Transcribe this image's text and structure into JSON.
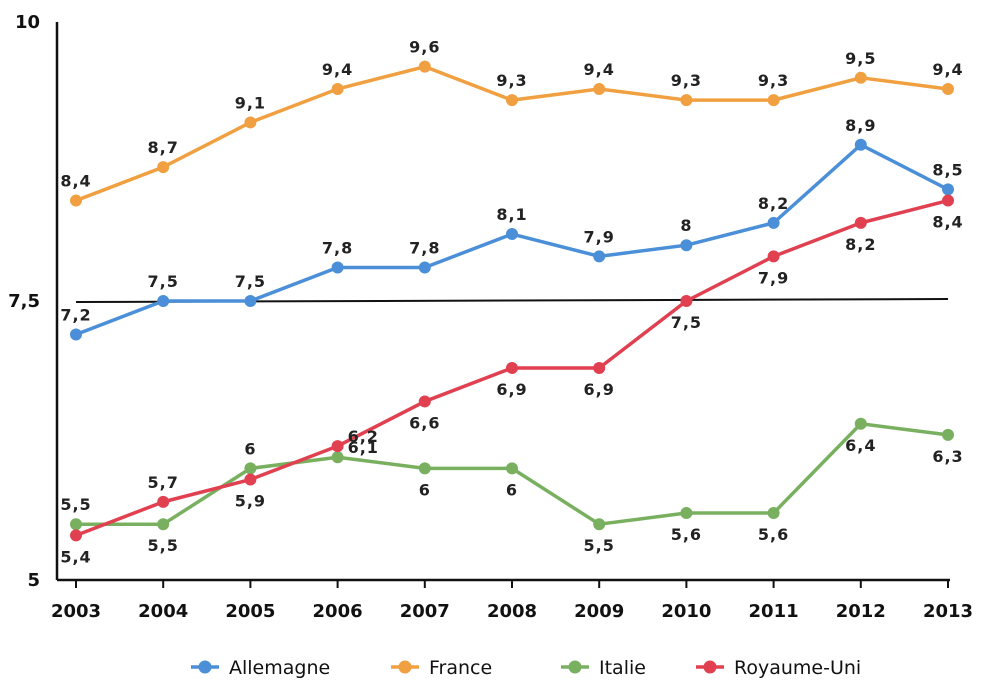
{
  "chart_data": {
    "type": "line",
    "title": "",
    "xlabel": "",
    "ylabel": "",
    "x": [
      "2003",
      "2004",
      "2005",
      "2006",
      "2007",
      "2008",
      "2009",
      "2010",
      "2011",
      "2012",
      "2013"
    ],
    "ylim": [
      5,
      10
    ],
    "yticks": [
      "5",
      "7,5",
      "10"
    ],
    "reference_line": 7.5,
    "grid": false,
    "legend_position": "bottom",
    "series": [
      {
        "name": "Allemagne",
        "color": "#4a8fd8",
        "values": [
          7.2,
          7.5,
          7.5,
          7.8,
          7.8,
          8.1,
          7.9,
          8.0,
          8.2,
          8.9,
          8.5
        ],
        "labels": [
          "7,2",
          "7,5",
          "7,5",
          "7,8",
          "7,8",
          "8,1",
          "7,9",
          "8",
          "8,2",
          "8,9",
          "8,5"
        ]
      },
      {
        "name": "France",
        "color": "#f0a040",
        "values": [
          8.4,
          8.7,
          9.1,
          9.4,
          9.6,
          9.3,
          9.4,
          9.3,
          9.3,
          9.5,
          9.4
        ],
        "labels": [
          "8,4",
          "8,7",
          "9,1",
          "9,4",
          "9,6",
          "9,3",
          "9,4",
          "9,3",
          "9,3",
          "9,5",
          "9,4"
        ]
      },
      {
        "name": "Italie",
        "color": "#78b060",
        "values": [
          5.5,
          5.5,
          6.0,
          6.1,
          6.0,
          6.0,
          5.5,
          5.6,
          5.6,
          6.4,
          6.3
        ],
        "labels": [
          "5,5",
          "5,5",
          "6",
          "6,1",
          "6",
          "6",
          "5,5",
          "5,6",
          "5,6",
          "6,4",
          "6,3"
        ]
      },
      {
        "name": "Royaume-Uni",
        "color": "#e04050",
        "values": [
          5.4,
          5.7,
          5.9,
          6.2,
          6.6,
          6.9,
          6.9,
          7.5,
          7.9,
          8.2,
          8.4
        ],
        "labels": [
          "5,4",
          "5,7",
          "5,9",
          "6,2",
          "6,6",
          "6,9",
          "6,9",
          "7,5",
          "7,9",
          "8,2",
          "8,4"
        ]
      }
    ]
  }
}
